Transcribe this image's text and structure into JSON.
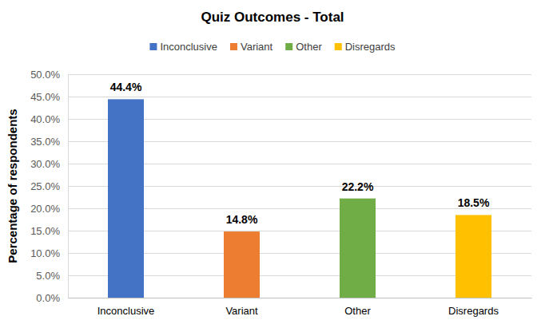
{
  "chart_data": {
    "type": "bar",
    "title": "Quiz Outcomes - Total",
    "y_label": "Percentage of respondents",
    "categories": [
      "Inconclusive",
      "Variant",
      "Other",
      "Disregards"
    ],
    "values": [
      44.4,
      14.8,
      22.2,
      18.5
    ],
    "value_labels": [
      "44.4%",
      "14.8%",
      "22.2%",
      "18.5%"
    ],
    "colors": [
      "#4472c4",
      "#ed7d31",
      "#70ad47",
      "#ffc000"
    ],
    "ylim": [
      0,
      50
    ],
    "yticks": [
      {
        "value": 0,
        "label": "0.0%"
      },
      {
        "value": 5,
        "label": "5.0%"
      },
      {
        "value": 10,
        "label": "10.0%"
      },
      {
        "value": 15,
        "label": "15.0%"
      },
      {
        "value": 20,
        "label": "20.0%"
      },
      {
        "value": 25,
        "label": "25.0%"
      },
      {
        "value": 30,
        "label": "30.0%"
      },
      {
        "value": 35,
        "label": "35.0%"
      },
      {
        "value": 40,
        "label": "40.0%"
      },
      {
        "value": 45,
        "label": "45.0%"
      },
      {
        "value": 50,
        "label": "50.0%"
      }
    ],
    "grid": true,
    "legend": "top",
    "data_labels": true
  }
}
